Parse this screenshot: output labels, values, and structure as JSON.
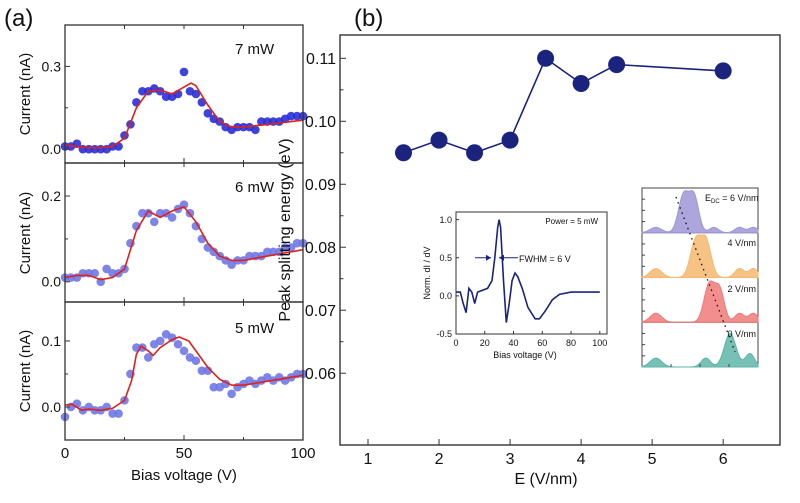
{
  "panel_labels": {
    "a": "(a)",
    "b": "(b)"
  },
  "colors": {
    "points_a_dark": "#2b2fd6",
    "points_a_light": "#6f78e6",
    "fit": "#e0201c",
    "points_b": "#1a237e",
    "inset_curve": "#1a237e",
    "spectra": [
      "#9d97d6",
      "#f5b870",
      "#f07a78",
      "#5fb5a8"
    ]
  },
  "chart_data": [
    {
      "type": "scatter",
      "panel": "a-top",
      "annotation": "7 mW",
      "ylabel": "Current (nA)",
      "xlim": [
        0,
        100
      ],
      "ylim": [
        -0.05,
        0.45
      ],
      "yticks": [
        "0.0",
        "0.3"
      ],
      "ytick_values": [
        0.0,
        0.3
      ],
      "yminor": [
        0.15
      ],
      "x": [
        0,
        2.5,
        5,
        7.5,
        10,
        12.5,
        15,
        17.5,
        20,
        22.5,
        25,
        27.5,
        30,
        32.5,
        35,
        37.5,
        40,
        42.5,
        45,
        47.5,
        50,
        52.5,
        55,
        57.5,
        60,
        62.5,
        65,
        67.5,
        70,
        72.5,
        75,
        77.5,
        80,
        82.5,
        85,
        87.5,
        90,
        92.5,
        95,
        97.5,
        100
      ],
      "y": [
        0.01,
        0.01,
        0.02,
        0.0,
        0.0,
        0.0,
        0.0,
        0.0,
        0.01,
        0.01,
        0.05,
        0.09,
        0.17,
        0.21,
        0.21,
        0.22,
        0.21,
        0.19,
        0.19,
        0.2,
        0.28,
        0.21,
        0.2,
        0.17,
        0.13,
        0.11,
        0.1,
        0.08,
        0.07,
        0.08,
        0.08,
        0.08,
        0.07,
        0.1,
        0.1,
        0.1,
        0.1,
        0.11,
        0.12,
        0.12,
        0.12
      ],
      "fit_x": [
        0,
        5,
        10,
        15,
        20,
        25,
        30,
        35,
        40,
        45,
        50,
        53,
        55,
        60,
        65,
        70,
        75,
        80,
        85,
        90,
        95,
        100
      ],
      "fit_y": [
        0.015,
        0.01,
        0.005,
        0.005,
        0.01,
        0.04,
        0.15,
        0.21,
        0.215,
        0.2,
        0.225,
        0.24,
        0.23,
        0.16,
        0.1,
        0.08,
        0.08,
        0.085,
        0.09,
        0.095,
        0.1,
        0.105
      ]
    },
    {
      "type": "scatter",
      "panel": "a-middle",
      "annotation": "6 mW",
      "ylabel": "Current (nA)",
      "xlim": [
        0,
        100
      ],
      "ylim": [
        -0.047,
        0.277
      ],
      "yticks": [
        "0.0",
        "0.2"
      ],
      "ytick_values": [
        0.0,
        0.2
      ],
      "yminor": [
        0.1
      ],
      "x": [
        0,
        2.5,
        5,
        7.5,
        10,
        12.5,
        15,
        17.5,
        20,
        22.5,
        25,
        27.5,
        30,
        32.5,
        35,
        37.5,
        40,
        42.5,
        45,
        47.5,
        50,
        52.5,
        55,
        57.5,
        60,
        62.5,
        65,
        67.5,
        70,
        72.5,
        75,
        77.5,
        80,
        82.5,
        85,
        87.5,
        90,
        92.5,
        95,
        97.5,
        100
      ],
      "y": [
        0.01,
        0.01,
        0.01,
        0.02,
        0.02,
        0.02,
        0.0,
        0.03,
        0.02,
        0.02,
        0.03,
        0.09,
        0.13,
        0.16,
        0.16,
        0.14,
        0.16,
        0.16,
        0.15,
        0.17,
        0.18,
        0.16,
        0.13,
        0.1,
        0.08,
        0.07,
        0.06,
        0.05,
        0.04,
        0.05,
        0.05,
        0.06,
        0.06,
        0.06,
        0.07,
        0.07,
        0.07,
        0.08,
        0.08,
        0.09,
        0.09
      ],
      "fit_x": [
        0,
        5,
        10,
        15,
        20,
        25,
        30,
        35,
        40,
        45,
        50,
        55,
        60,
        65,
        70,
        75,
        80,
        85,
        90,
        95,
        100
      ],
      "fit_y": [
        0.01,
        0.015,
        0.015,
        0.005,
        0.01,
        0.03,
        0.12,
        0.165,
        0.15,
        0.165,
        0.175,
        0.14,
        0.09,
        0.06,
        0.05,
        0.05,
        0.055,
        0.06,
        0.065,
        0.07,
        0.075
      ]
    },
    {
      "type": "scatter",
      "panel": "a-bottom",
      "annotation": "5 mW",
      "ylabel": "Current (nA)",
      "xlabel": "Bias voltage (V)",
      "xticks": [
        "0",
        "50",
        "100"
      ],
      "xtick_values": [
        0,
        50,
        100
      ],
      "xminor": [
        25,
        75
      ],
      "xlim": [
        0,
        100
      ],
      "ylim": [
        -0.05,
        0.159
      ],
      "yticks": [
        "0.0",
        "0.1"
      ],
      "ytick_values": [
        0.0,
        0.1
      ],
      "yminor": [
        0.05
      ],
      "x": [
        0,
        2.5,
        5,
        7.5,
        10,
        12.5,
        15,
        17.5,
        20,
        22.5,
        25,
        27.5,
        30,
        32.5,
        35,
        37.5,
        40,
        42.5,
        45,
        47.5,
        50,
        52.5,
        55,
        57.5,
        60,
        62.5,
        65,
        67.5,
        70,
        72.5,
        75,
        77.5,
        80,
        82.5,
        85,
        87.5,
        90,
        92.5,
        95,
        97.5,
        100
      ],
      "y": [
        -0.015,
        0.0,
        0.005,
        -0.005,
        0.0,
        -0.005,
        -0.005,
        0.0,
        -0.01,
        -0.01,
        0.01,
        0.05,
        0.09,
        0.09,
        0.075,
        0.095,
        0.1,
        0.11,
        0.105,
        0.095,
        0.085,
        0.075,
        0.07,
        0.055,
        0.055,
        0.03,
        0.03,
        0.035,
        0.02,
        0.03,
        0.035,
        0.04,
        0.035,
        0.04,
        0.045,
        0.04,
        0.045,
        0.04,
        0.045,
        0.05,
        0.05
      ],
      "fit_x": [
        0,
        3,
        7,
        10,
        15,
        20,
        25,
        28,
        30,
        32,
        35,
        37,
        40,
        45,
        48,
        52,
        55,
        60,
        65,
        70,
        75,
        80,
        90,
        100
      ],
      "fit_y": [
        0.003,
        0.004,
        -0.005,
        -0.003,
        -0.005,
        -0.002,
        0.01,
        0.04,
        0.08,
        0.092,
        0.085,
        0.078,
        0.09,
        0.102,
        0.106,
        0.1,
        0.085,
        0.06,
        0.042,
        0.033,
        0.033,
        0.036,
        0.042,
        0.048
      ]
    },
    {
      "type": "line",
      "panel": "b",
      "xlabel": "E (V/nm)",
      "ylabel": "Peak splitting energy (eV)",
      "xlim": [
        0.606,
        6.8
      ],
      "ylim": [
        0.0486,
        0.1137
      ],
      "xticks": [
        "1",
        "2",
        "3",
        "4",
        "5",
        "6"
      ],
      "xtick_values": [
        1,
        2,
        3,
        4,
        5,
        6
      ],
      "yticks": [
        "0.06",
        "0.07",
        "0.08",
        "0.09",
        "0.10",
        "0.11"
      ],
      "ytick_values": [
        0.06,
        0.07,
        0.08,
        0.09,
        0.1,
        0.11
      ],
      "x": [
        1.5,
        2,
        2.5,
        3,
        3.5,
        4,
        4.5,
        6
      ],
      "y": [
        0.095,
        0.097,
        0.095,
        0.097,
        0.11,
        0.106,
        0.109,
        0.108
      ]
    },
    {
      "type": "line",
      "panel": "b-inset",
      "annotation": "Power = 5 mW",
      "fwhm_label": "FWHM = 6 V",
      "xlabel": "Bias voltage (V)",
      "ylabel": "Norm. dI / dV",
      "xlim": [
        0,
        105
      ],
      "ylim": [
        -0.5,
        1.1
      ],
      "xticks": [
        "0",
        "20",
        "40",
        "60",
        "80",
        "100"
      ],
      "xtick_values": [
        0,
        20,
        40,
        60,
        80,
        100
      ],
      "yticks": [
        "-0.5",
        "0.0",
        "0.5",
        "1.0"
      ],
      "ytick_values": [
        -0.5,
        0,
        0.5,
        1.0
      ],
      "x": [
        0,
        3,
        5,
        7,
        9,
        11,
        13,
        15,
        18,
        22,
        25,
        27,
        29,
        30,
        31,
        33,
        35,
        37,
        39,
        41,
        43,
        46,
        50,
        55,
        58,
        62,
        67,
        72,
        80,
        100
      ],
      "y": [
        0.05,
        0.05,
        -0.1,
        -0.22,
        0.1,
        0.05,
        -0.1,
        0.05,
        0.07,
        0.1,
        0.2,
        0.5,
        0.9,
        1.0,
        0.9,
        0.2,
        -0.35,
        -0.1,
        0.2,
        0.3,
        0.25,
        0.1,
        -0.15,
        -0.3,
        -0.3,
        -0.2,
        -0.05,
        0.02,
        0.05,
        0.05
      ]
    },
    {
      "type": "area",
      "panel": "b-inset-spectra",
      "row_labels": [
        "E",
        "DC",
        " = 6 V/nm",
        "4 V/nm",
        "2 V/nm",
        "0 V/nm"
      ]
    }
  ]
}
